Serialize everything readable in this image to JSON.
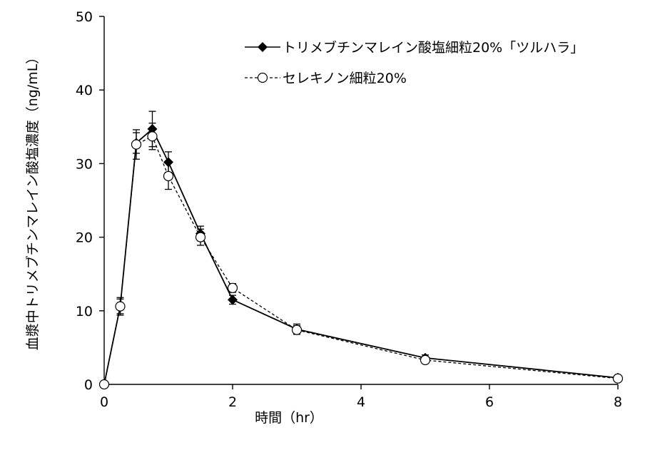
{
  "chart_data": {
    "type": "line",
    "title": "",
    "xlabel": "時間（hr）",
    "ylabel": "血漿中トリメブチンマレイン酸塩濃度（ng/mL）",
    "xlim": [
      0,
      8
    ],
    "ylim": [
      0,
      50
    ],
    "x_ticks": [
      0,
      2,
      4,
      6,
      8
    ],
    "y_ticks": [
      0,
      10,
      20,
      30,
      40,
      50
    ],
    "grid": false,
    "legend_position": "top-right",
    "series": [
      {
        "name": "トリメブチンマレイン酸塩細粒20%「ツルハラ」",
        "marker": "filled-diamond",
        "line": "solid",
        "color": "#000000",
        "x": [
          0.0,
          0.25,
          0.5,
          0.75,
          1.0,
          1.5,
          2.0,
          3.0,
          5.0,
          8.0
        ],
        "y": [
          0.0,
          10.6,
          32.8,
          34.7,
          30.2,
          20.5,
          11.5,
          7.5,
          3.6,
          0.9
        ],
        "err": [
          0,
          1.0,
          1.4,
          2.4,
          1.4,
          1.0,
          0.6,
          0.7,
          0.4,
          0.2
        ]
      },
      {
        "name": "セレキノン細粒20%",
        "marker": "open-circle",
        "line": "dashed",
        "color": "#000000",
        "x": [
          0.0,
          0.25,
          0.5,
          0.75,
          1.0,
          1.5,
          2.0,
          3.0,
          5.0,
          8.0
        ],
        "y": [
          0.0,
          10.6,
          32.6,
          33.7,
          28.3,
          20.0,
          13.1,
          7.4,
          3.3,
          0.8
        ],
        "err": [
          0,
          1.2,
          2.0,
          1.8,
          1.8,
          1.1,
          0.6,
          0.6,
          0.4,
          0.2
        ]
      }
    ]
  }
}
